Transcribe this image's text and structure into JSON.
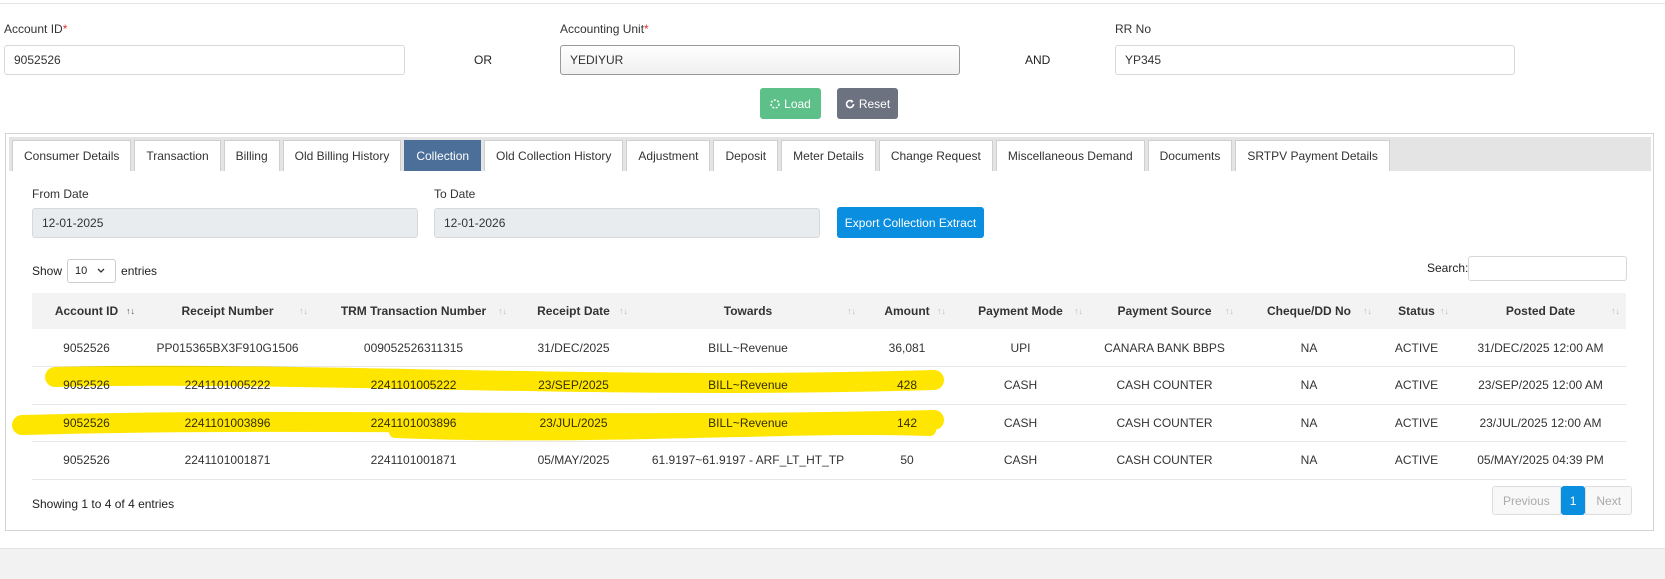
{
  "form": {
    "account_id": {
      "label": "Account ID",
      "required_mark": "*",
      "value": "9052526"
    },
    "or_text": "OR",
    "accounting_unit": {
      "label": "Accounting Unit",
      "required_mark": "*",
      "value": "YEDIYUR"
    },
    "and_text": "AND",
    "rr_no": {
      "label": "RR No",
      "value": "YP345"
    },
    "load_button": "Load",
    "reset_button": "Reset"
  },
  "tabs": [
    "Consumer Details",
    "Transaction",
    "Billing",
    "Old Billing History",
    "Collection",
    "Old Collection History",
    "Adjustment",
    "Deposit",
    "Meter Details",
    "Change Request",
    "Miscellaneous Demand",
    "Documents",
    "SRTPV Payment Details"
  ],
  "active_tab": 4,
  "filters": {
    "from_date": {
      "label": "From Date",
      "value": "12-01-2025"
    },
    "to_date": {
      "label": "To Date",
      "value": "12-01-2026"
    },
    "export_button": "Export Collection Extract"
  },
  "length_menu": {
    "show": "Show",
    "value": "10",
    "entries": "entries"
  },
  "search_label": "Search:",
  "table": {
    "headers": [
      "Account ID",
      "Receipt Number",
      "TRM Transaction Number",
      "Receipt Date",
      "Towards",
      "Amount",
      "Payment Mode",
      "Payment Source",
      "Cheque/DD No",
      "Status",
      "Posted Date"
    ],
    "rows": [
      [
        "9052526",
        "PP015365BX3F910G1506",
        "009052526311315",
        "31/DEC/2025",
        "BILL~Revenue",
        "36,081",
        "UPI",
        "CANARA BANK BBPS",
        "NA",
        "ACTIVE",
        "31/DEC/2025 12:00 AM"
      ],
      [
        "9052526",
        "2241101005222",
        "2241101005222",
        "23/SEP/2025",
        "BILL~Revenue",
        "428",
        "CASH",
        "CASH COUNTER",
        "NA",
        "ACTIVE",
        "23/SEP/2025 12:00 AM"
      ],
      [
        "9052526",
        "2241101003896",
        "2241101003896",
        "23/JUL/2025",
        "BILL~Revenue",
        "142",
        "CASH",
        "CASH COUNTER",
        "NA",
        "ACTIVE",
        "23/JUL/2025 12:00 AM"
      ],
      [
        "9052526",
        "2241101001871",
        "2241101001871",
        "05/MAY/2025",
        "61.9197~61.9197 - ARF_LT_HT_TP",
        "50",
        "CASH",
        "CASH COUNTER",
        "NA",
        "ACTIVE",
        "05/MAY/2025 04:39 PM"
      ]
    ]
  },
  "info": "Showing 1 to 4 of 4 entries",
  "pagination": {
    "previous": "Previous",
    "current": "1",
    "next": "Next"
  }
}
